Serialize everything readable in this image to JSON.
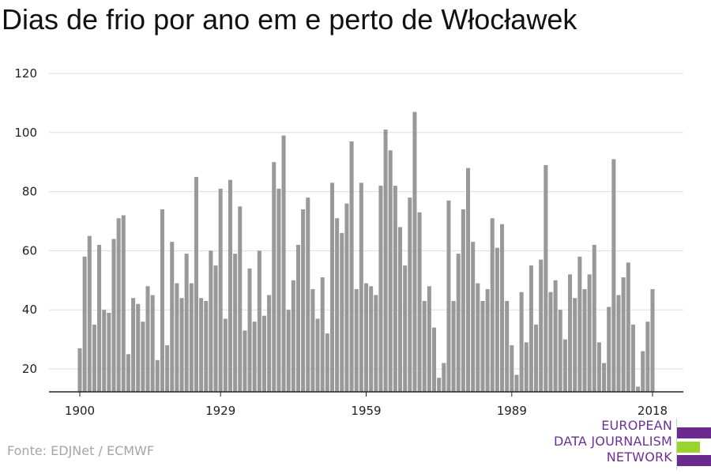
{
  "title": "Dias de frio por ano em e perto de Włocławek",
  "source": "Fonte: EDJNet / ECMWF",
  "logo": {
    "lines": [
      "EUROPEAN",
      "DATA JOURNALISM",
      "NETWORK"
    ],
    "colors": {
      "text": "#6b3296",
      "bar_primary": "#6b2a8f",
      "bar_accent": "#9ad32b"
    }
  },
  "colors": {
    "bar": "#999999",
    "grid": "#dddddd",
    "axis": "#222222",
    "text": "#222222"
  },
  "chart_data": {
    "type": "bar",
    "title": "Dias de frio por ano em e perto de Włocławek",
    "xlabel": "",
    "ylabel": "",
    "x_start": 1900,
    "x_end": 2018,
    "x_ticks": [
      1900,
      1929,
      1959,
      1989,
      2018
    ],
    "y_ticks": [
      20,
      40,
      60,
      80,
      100,
      120
    ],
    "ylim": [
      12,
      120
    ],
    "grid": true,
    "values": [
      27,
      58,
      65,
      35,
      62,
      40,
      39,
      64,
      71,
      72,
      25,
      44,
      42,
      36,
      48,
      45,
      23,
      74,
      28,
      63,
      49,
      44,
      59,
      49,
      85,
      44,
      43,
      60,
      55,
      81,
      37,
      84,
      59,
      75,
      33,
      54,
      36,
      60,
      38,
      45,
      90,
      81,
      99,
      40,
      50,
      62,
      74,
      78,
      47,
      37,
      51,
      32,
      83,
      71,
      66,
      76,
      97,
      47,
      83,
      49,
      48,
      45,
      82,
      101,
      94,
      82,
      68,
      55,
      78,
      107,
      73,
      43,
      48,
      34,
      17,
      22,
      77,
      43,
      59,
      74,
      88,
      63,
      49,
      43,
      47,
      71,
      61,
      69,
      43,
      28,
      18,
      46,
      29,
      55,
      35,
      57,
      89,
      46,
      50,
      40,
      30,
      52,
      44,
      58,
      47,
      52,
      62,
      29,
      22,
      41,
      91,
      45,
      51,
      56,
      35,
      14,
      26,
      36,
      47
    ]
  }
}
